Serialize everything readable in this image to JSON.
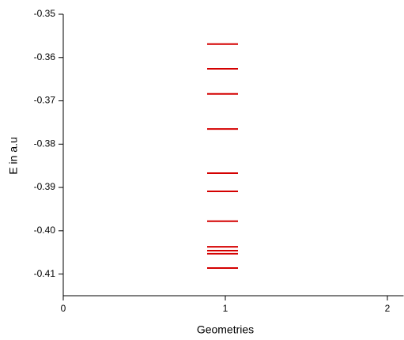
{
  "chart_data": {
    "type": "level",
    "x_label": "Geometries",
    "y_label": "E in a.u",
    "x": [
      1,
      1,
      1,
      1,
      1,
      1,
      1,
      1,
      1,
      1,
      1
    ],
    "values": [
      -0.3569,
      -0.3626,
      -0.3684,
      -0.3765,
      -0.3867,
      -0.3909,
      -0.3978,
      -0.4037,
      -0.4046,
      -0.4053,
      -0.4086
    ],
    "color": "#d40000",
    "xlim": [
      0,
      2.1
    ],
    "xticks": [
      0,
      1,
      2
    ],
    "ylim": [
      -0.415,
      -0.35
    ],
    "yticks": [
      -0.35,
      -0.36,
      -0.37,
      -0.38,
      -0.39,
      {
        "value": -0.4,
        "label": "-0.40"
      },
      -0.41
    ]
  }
}
